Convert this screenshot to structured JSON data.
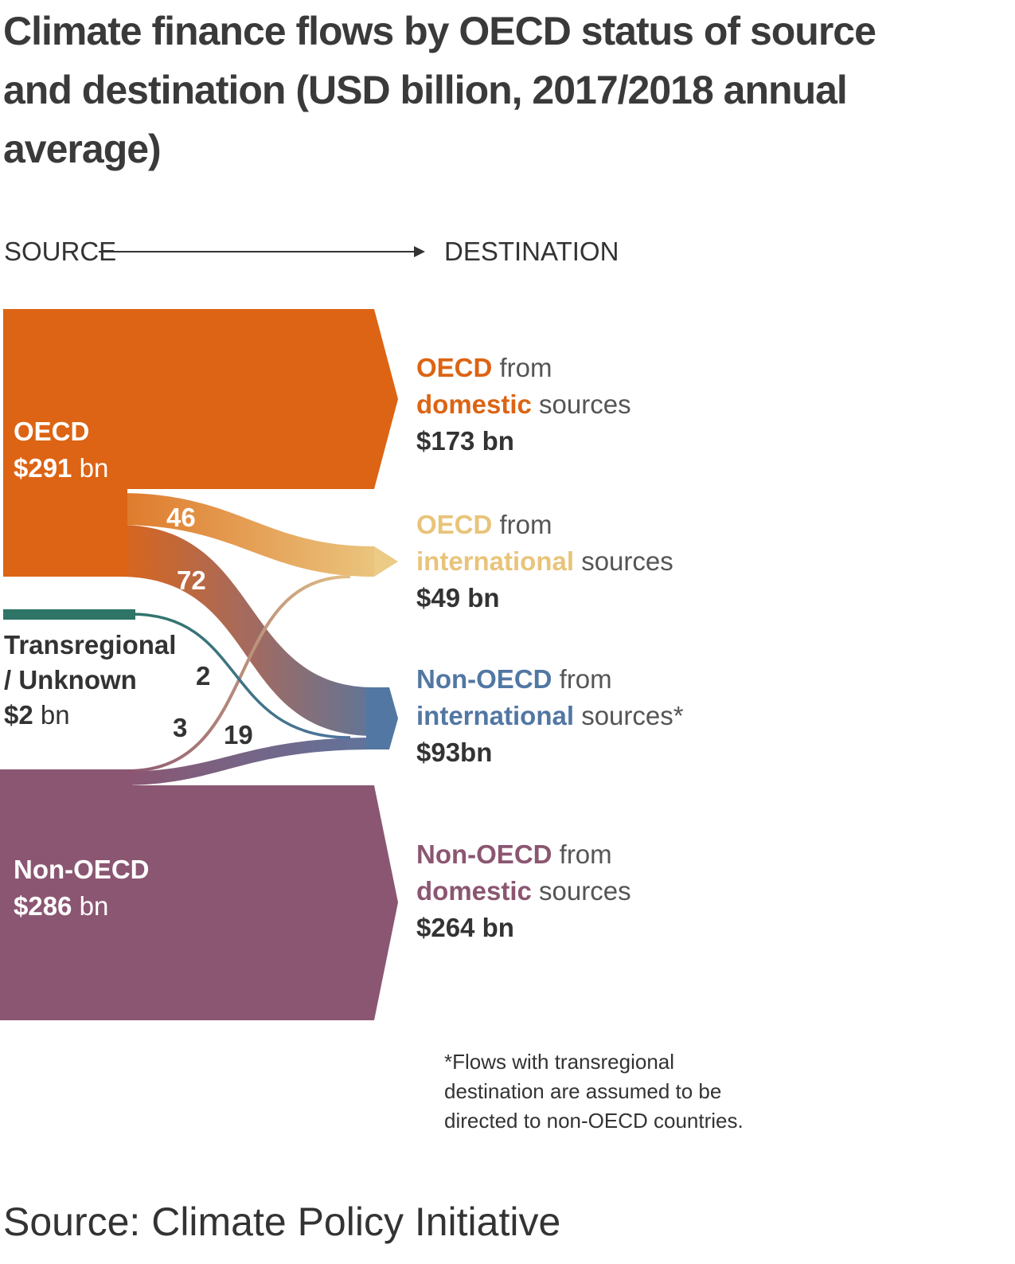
{
  "title_line1": "Climate finance flows by OECD status of source",
  "title_line2": "and destination (USD billion, 2017/2018 annual average)",
  "axis": {
    "source": "SOURCE",
    "destination": "DESTINATION"
  },
  "sources": {
    "oecd": {
      "name": "OECD",
      "amount": "$291",
      "unit": " bn"
    },
    "trans": {
      "name_line1": "Transregional",
      "name_line2": "/ Unknown",
      "amount": "$2",
      "unit": " bn"
    },
    "nonoecd": {
      "name": "Non-OECD",
      "amount": "$286",
      "unit": " bn"
    }
  },
  "destinations": {
    "oecd_dom": {
      "w1": "OECD",
      "w2": " from",
      "w3": "domestic",
      "w4": " sources",
      "amount": "$173 bn"
    },
    "oecd_int": {
      "w1": "OECD",
      "w2": " from",
      "w3": "international",
      "w4": " sources",
      "amount": "$49 bn"
    },
    "non_int": {
      "w1": "Non-OECD",
      "w2": " from",
      "w3": "international",
      "w4": " sources*",
      "amount": "$93bn"
    },
    "non_dom": {
      "w1": "Non-OECD",
      "w2": " from",
      "w3": "domestic",
      "w4": " sources",
      "amount": "$264 bn"
    }
  },
  "flows": {
    "oecd_to_oecd_int": "46",
    "oecd_to_non_int": "72",
    "trans_to_non_int": "2",
    "non_to_oecd_int": "3",
    "non_to_non_int": "19"
  },
  "footnote": "*Flows with transregional destination are assumed to be directed to non-OECD countries.",
  "source_note": "Source: Climate Policy Initiative",
  "colors": {
    "oecd": "#dc6414",
    "oecd_int": "#e9c77c",
    "non_oecd_int": "#5277a3",
    "non_oecd": "#8b5672",
    "trans": "#2e7467"
  }
}
